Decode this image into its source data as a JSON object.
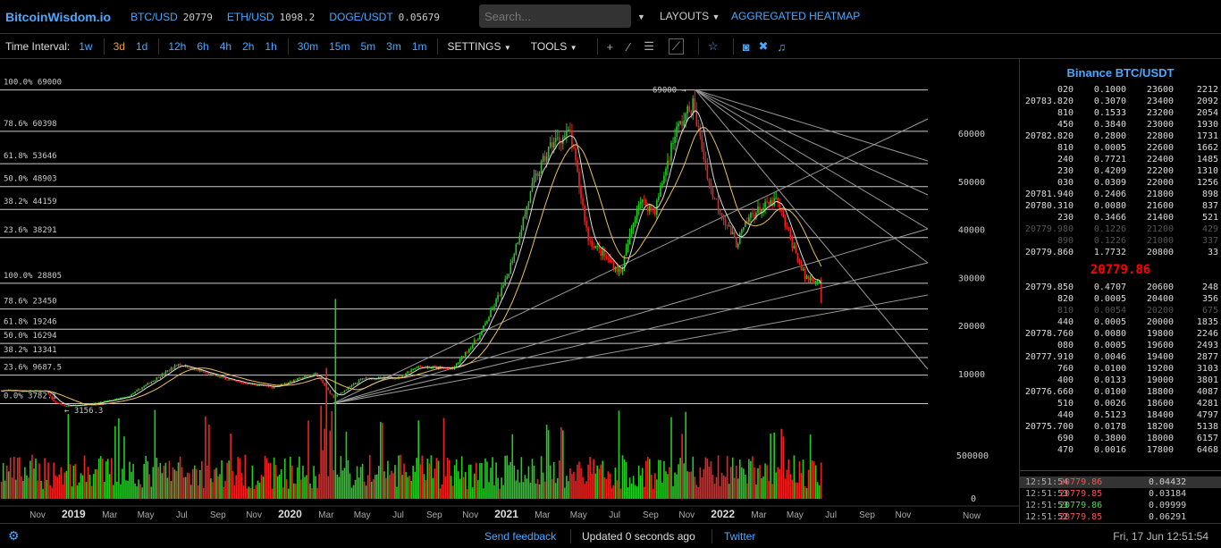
{
  "header": {
    "logo": "BitcoinWisdom.io",
    "tickers": [
      {
        "symbol": "BTC/USD",
        "value": "20779"
      },
      {
        "symbol": "ETH/USD",
        "value": "1098.2"
      },
      {
        "symbol": "DOGE/USDT",
        "value": "0.05679"
      }
    ],
    "search_placeholder": "Search...",
    "layouts": "LAYOUTS",
    "heatmap": "AGGREGATED HEATMAP"
  },
  "toolbar": {
    "label": "Time Interval:",
    "intervals": [
      "1w",
      "3d",
      "1d",
      "12h",
      "6h",
      "4h",
      "2h",
      "1h",
      "30m",
      "15m",
      "5m",
      "3m",
      "1m"
    ],
    "active_interval": "3d",
    "settings": "SETTINGS",
    "tools": "TOOLS",
    "icons": [
      "crosshair-icon",
      "line-icon",
      "horizontal-lines-icon",
      "fan-icon",
      "star-icon",
      "camera-icon",
      "fullscreen-icon",
      "bell-icon"
    ]
  },
  "chart": {
    "fib_levels": [
      {
        "label": "100.0% 69000",
        "price": 69000
      },
      {
        "label": "78.6% 60398",
        "price": 60398
      },
      {
        "label": "61.8% 53646",
        "price": 53646
      },
      {
        "label": "50.0% 48903",
        "price": 48903
      },
      {
        "label": "38.2% 44159",
        "price": 44159
      },
      {
        "label": "23.6% 38291",
        "price": 38291
      },
      {
        "label": "100.0% 28805",
        "price": 28805
      },
      {
        "label": "78.6% 23450",
        "price": 23450
      },
      {
        "label": "61.8% 19246",
        "price": 19246
      },
      {
        "label": "50.0% 16294",
        "price": 16294
      },
      {
        "label": "38.2% 13341",
        "price": 13341
      },
      {
        "label": "23.6% 9687.5",
        "price": 9687.5
      },
      {
        "label": "0.0% 3782.1",
        "price": 3782.1
      }
    ],
    "high_label": "69000 →",
    "low_label": "← 3156.3",
    "y_ticks": [
      "60000",
      "50000",
      "40000",
      "30000",
      "20000",
      "10000"
    ],
    "volume_ticks": [
      "500000",
      "0"
    ],
    "x_ticks": [
      "Nov",
      "2019",
      "Mar",
      "May",
      "Jul",
      "Sep",
      "Nov",
      "2020",
      "Mar",
      "May",
      "Jul",
      "Sep",
      "Nov",
      "2021",
      "Mar",
      "May",
      "Jul",
      "Sep",
      "Nov",
      "2022",
      "Mar",
      "May",
      "Jul",
      "Sep",
      "Nov"
    ],
    "now_label": "Now",
    "colors": {
      "up": "#22cc22",
      "down": "#ee2222",
      "ma_fast": "#dddddd",
      "ma_slow": "#e8c060"
    },
    "price_path": [
      [
        0,
        6500
      ],
      [
        2.5,
        6300
      ],
      [
        2.9,
        4200
      ],
      [
        3.5,
        3300
      ],
      [
        5,
        3700
      ],
      [
        7,
        5200
      ],
      [
        9.8,
        12000
      ],
      [
        11,
        10500
      ],
      [
        13,
        8300
      ],
      [
        15,
        7200
      ],
      [
        17.4,
        10000
      ],
      [
        18.4,
        5000
      ],
      [
        20,
        9000
      ],
      [
        22,
        9200
      ],
      [
        23,
        11500
      ],
      [
        25,
        11000
      ],
      [
        26.5,
        18000
      ],
      [
        27.9,
        29000
      ],
      [
        28.3,
        34000
      ],
      [
        29.5,
        50000
      ],
      [
        30.5,
        58000
      ],
      [
        31.5,
        60000
      ],
      [
        32.5,
        38000
      ],
      [
        33.5,
        34000
      ],
      [
        34.3,
        31000
      ],
      [
        35.3,
        46000
      ],
      [
        36.2,
        44000
      ],
      [
        37.3,
        60000
      ],
      [
        38.3,
        66000
      ],
      [
        39.3,
        48000
      ],
      [
        40.7,
        37000
      ],
      [
        41.5,
        43000
      ],
      [
        42.9,
        46000
      ],
      [
        44.5,
        30000
      ],
      [
        45.3,
        29500
      ],
      [
        45.5,
        20400
      ]
    ]
  },
  "orderbook": {
    "title": "Binance BTC/USDT",
    "asks": [
      [
        "020",
        "0.1000",
        "23600",
        "2212"
      ],
      [
        "20783.820",
        "0.3070",
        "23400",
        "2092"
      ],
      [
        "810",
        "0.1533",
        "23200",
        "2054"
      ],
      [
        "450",
        "0.3840",
        "23000",
        "1930"
      ],
      [
        "20782.820",
        "0.2800",
        "22800",
        "1731"
      ],
      [
        "810",
        "0.0005",
        "22600",
        "1662"
      ],
      [
        "240",
        "0.7721",
        "22400",
        "1485"
      ],
      [
        "230",
        "0.4209",
        "22200",
        "1310"
      ],
      [
        "030",
        "0.0309",
        "22000",
        "1256"
      ],
      [
        "20781.940",
        "0.2406",
        "21800",
        "898"
      ],
      [
        "20780.310",
        "0.0080",
        "21600",
        "837"
      ],
      [
        "230",
        "0.3466",
        "21400",
        "521"
      ],
      [
        "20779.980",
        "0.1226",
        "21200",
        "429"
      ],
      [
        "890",
        "0.1226",
        "21000",
        "337"
      ],
      [
        "20779.860",
        "1.7732",
        "20800",
        "33"
      ]
    ],
    "last_price": "20779.86",
    "bids": [
      [
        "20779.850",
        "0.4707",
        "20600",
        "248"
      ],
      [
        "820",
        "0.0005",
        "20400",
        "356"
      ],
      [
        "810",
        "0.0054",
        "20200",
        "675"
      ],
      [
        "440",
        "0.0005",
        "20000",
        "1835"
      ],
      [
        "20778.760",
        "0.0080",
        "19800",
        "2246"
      ],
      [
        "080",
        "0.0005",
        "19600",
        "2493"
      ],
      [
        "20777.910",
        "0.0046",
        "19400",
        "2877"
      ],
      [
        "760",
        "0.0100",
        "19200",
        "3103"
      ],
      [
        "400",
        "0.0133",
        "19000",
        "3801"
      ],
      [
        "20776.660",
        "0.0100",
        "18800",
        "4087"
      ],
      [
        "510",
        "0.0026",
        "18600",
        "4281"
      ],
      [
        "440",
        "0.5123",
        "18400",
        "4797"
      ],
      [
        "20775.700",
        "0.0178",
        "18200",
        "5138"
      ],
      [
        "690",
        "0.3800",
        "18000",
        "6157"
      ],
      [
        "470",
        "0.0016",
        "17800",
        "6468"
      ]
    ],
    "trades": [
      {
        "time": "12:51:54",
        "price": "20779.86",
        "side": "sell",
        "amount": "0.04432"
      },
      {
        "time": "12:51:53",
        "price": "20779.85",
        "side": "sell",
        "amount": "0.03184"
      },
      {
        "time": "12:51:53",
        "price": "20779.86",
        "side": "buy",
        "amount": "0.09999"
      },
      {
        "time": "12:51:52",
        "price": "20779.85",
        "side": "sell",
        "amount": "0.06291"
      }
    ]
  },
  "footer": {
    "feedback": "Send feedback",
    "updated": "Updated 0 seconds ago",
    "twitter": "Twitter",
    "datetime": "Fri, 17 Jun 12:51:54"
  }
}
